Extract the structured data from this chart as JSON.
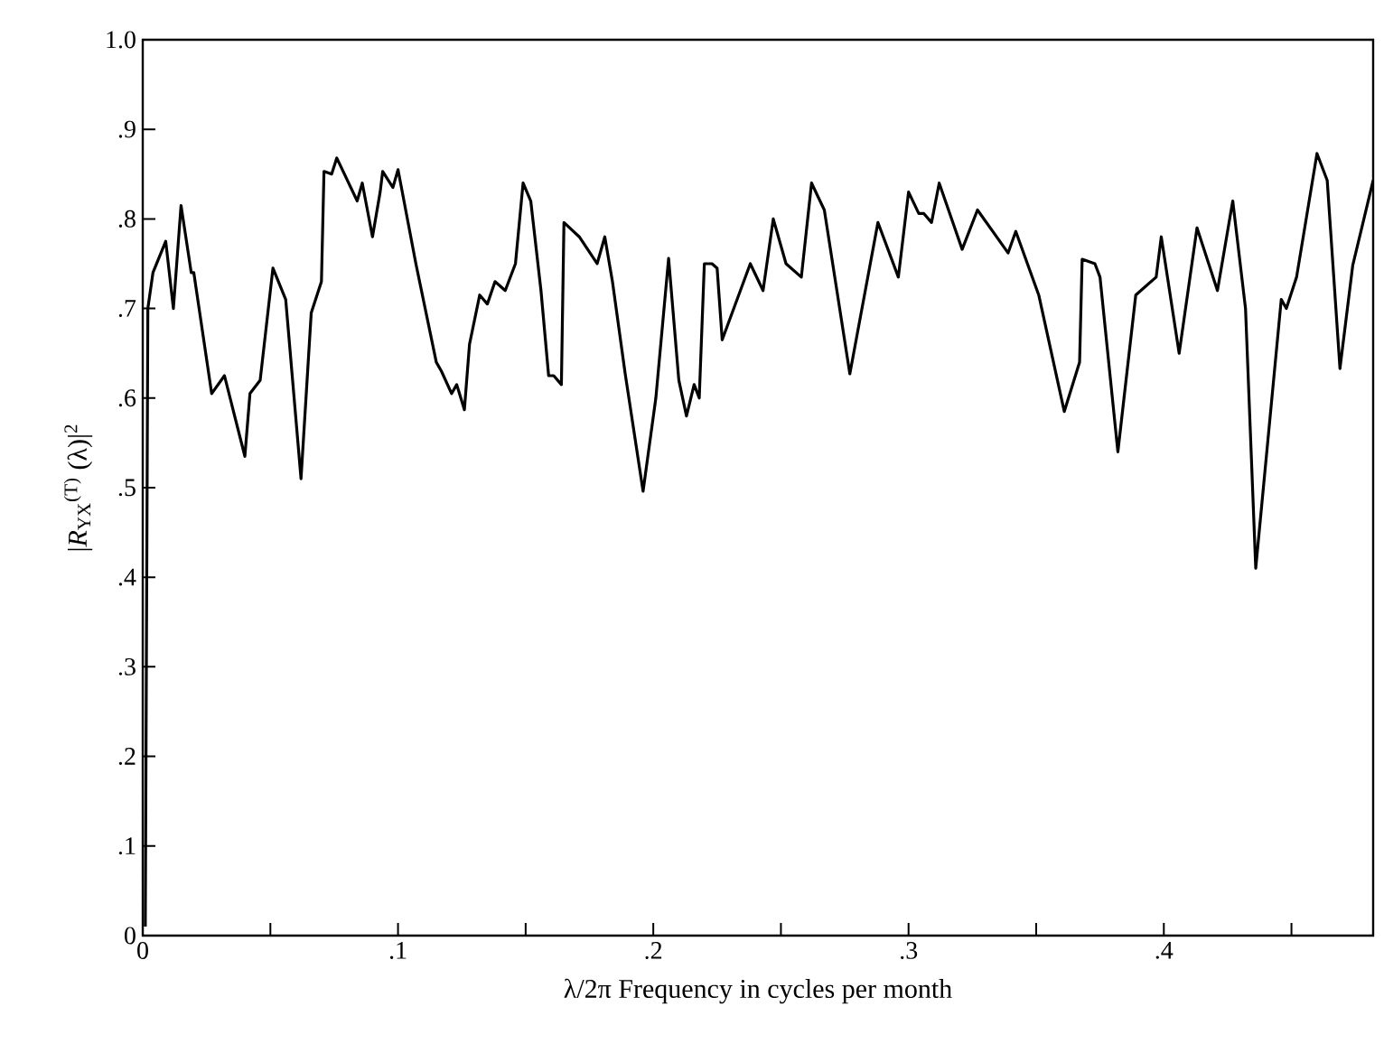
{
  "chart_data": {
    "type": "line",
    "xlabel": "λ/2π  Frequency in cycles per month",
    "ylabel": "|*R*$_{YX}$$^{(T)}$ (λ)|$^{2}$",
    "xlim": [
      0,
      0.482
    ],
    "ylim": [
      0,
      1.0
    ],
    "xticks": [
      {
        "value": 0,
        "label": "0"
      },
      {
        "value": 0.05,
        "label": null
      },
      {
        "value": 0.1,
        "label": ".1"
      },
      {
        "value": 0.15,
        "label": null
      },
      {
        "value": 0.2,
        "label": ".2"
      },
      {
        "value": 0.25,
        "label": null
      },
      {
        "value": 0.3,
        "label": ".3"
      },
      {
        "value": 0.35,
        "label": null
      },
      {
        "value": 0.4,
        "label": ".4"
      },
      {
        "value": 0.45,
        "label": null
      }
    ],
    "yticks": [
      {
        "value": 0,
        "label": "0"
      },
      {
        "value": 0.1,
        "label": ".1"
      },
      {
        "value": 0.2,
        "label": ".2"
      },
      {
        "value": 0.3,
        "label": ".3"
      },
      {
        "value": 0.4,
        "label": ".4"
      },
      {
        "value": 0.5,
        "label": ".5"
      },
      {
        "value": 0.6,
        "label": ".6"
      },
      {
        "value": 0.7,
        "label": ".7"
      },
      {
        "value": 0.8,
        "label": ".8"
      },
      {
        "value": 0.9,
        "label": ".9"
      },
      {
        "value": 1.0,
        "label": "1.0"
      }
    ],
    "grid": false,
    "marker": "none",
    "line_style": "solid",
    "series": [
      {
        "color": "#000000",
        "x": [
          0.001,
          0.002,
          0.004,
          0.009,
          0.012,
          0.015,
          0.019,
          0.02,
          0.027,
          0.032,
          0.04,
          0.042,
          0.046,
          0.051,
          0.056,
          0.062,
          0.066,
          0.07,
          0.071,
          0.074,
          0.076,
          0.084,
          0.086,
          0.09,
          0.093,
          0.094,
          0.098,
          0.1,
          0.107,
          0.115,
          0.117,
          0.121,
          0.123,
          0.126,
          0.128,
          0.132,
          0.135,
          0.138,
          0.142,
          0.146,
          0.149,
          0.152,
          0.156,
          0.159,
          0.161,
          0.164,
          0.165,
          0.171,
          0.178,
          0.181,
          0.184,
          0.189,
          0.196,
          0.201,
          0.206,
          0.21,
          0.213,
          0.216,
          0.218,
          0.22,
          0.223,
          0.225,
          0.227,
          0.238,
          0.243,
          0.247,
          0.252,
          0.258,
          0.262,
          0.267,
          0.277,
          0.288,
          0.296,
          0.3,
          0.304,
          0.306,
          0.309,
          0.312,
          0.321,
          0.327,
          0.339,
          0.342,
          0.351,
          0.361,
          0.367,
          0.368,
          0.373,
          0.375,
          0.382,
          0.389,
          0.397,
          0.399,
          0.406,
          0.413,
          0.421,
          0.427,
          0.432,
          0.436,
          0.446,
          0.448,
          0.452,
          0.46,
          0.464,
          0.469,
          0.474,
          0.482
        ],
        "values": [
          0.01,
          0.7,
          0.74,
          0.775,
          0.7,
          0.815,
          0.74,
          0.74,
          0.605,
          0.625,
          0.535,
          0.605,
          0.62,
          0.745,
          0.71,
          0.51,
          0.695,
          0.73,
          0.853,
          0.85,
          0.868,
          0.82,
          0.84,
          0.78,
          0.83,
          0.853,
          0.835,
          0.855,
          0.75,
          0.64,
          0.63,
          0.605,
          0.615,
          0.587,
          0.66,
          0.715,
          0.705,
          0.73,
          0.72,
          0.75,
          0.84,
          0.82,
          0.72,
          0.625,
          0.625,
          0.615,
          0.796,
          0.78,
          0.75,
          0.78,
          0.73,
          0.627,
          0.496,
          0.6,
          0.756,
          0.62,
          0.58,
          0.615,
          0.6,
          0.75,
          0.75,
          0.745,
          0.665,
          0.75,
          0.72,
          0.8,
          0.75,
          0.735,
          0.84,
          0.81,
          0.627,
          0.796,
          0.735,
          0.83,
          0.806,
          0.806,
          0.796,
          0.84,
          0.766,
          0.81,
          0.762,
          0.786,
          0.715,
          0.585,
          0.64,
          0.755,
          0.75,
          0.735,
          0.54,
          0.715,
          0.735,
          0.78,
          0.65,
          0.79,
          0.72,
          0.82,
          0.7,
          0.41,
          0.71,
          0.7,
          0.735,
          0.873,
          0.843,
          0.633,
          0.748,
          0.843
        ]
      }
    ]
  }
}
